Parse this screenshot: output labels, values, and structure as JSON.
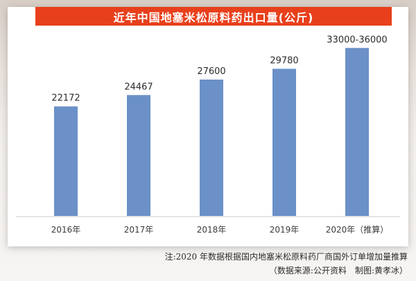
{
  "chart_data": {
    "type": "bar",
    "title": "近年中国地塞米松原料药出口量(公斤)",
    "xlabel": "",
    "ylabel": "",
    "categories": [
      "2016年",
      "2017年",
      "2018年",
      "2019年",
      "2020年（推算）"
    ],
    "values": [
      22172,
      24467,
      27600,
      29780,
      34000
    ],
    "data_labels": [
      "22172",
      "24467",
      "27600",
      "29780",
      "33000-36000"
    ],
    "ylim": [
      0,
      36000
    ],
    "grid": false,
    "bar_color": "#6b91c8",
    "title_bg_color": "#e8401c"
  },
  "footnote": {
    "line1": "注:2020 年数据根据国内地塞米松原料药厂商国外订单增加量推算",
    "line2": "（数据来源:公开资料　制图:黄孝冰）"
  }
}
